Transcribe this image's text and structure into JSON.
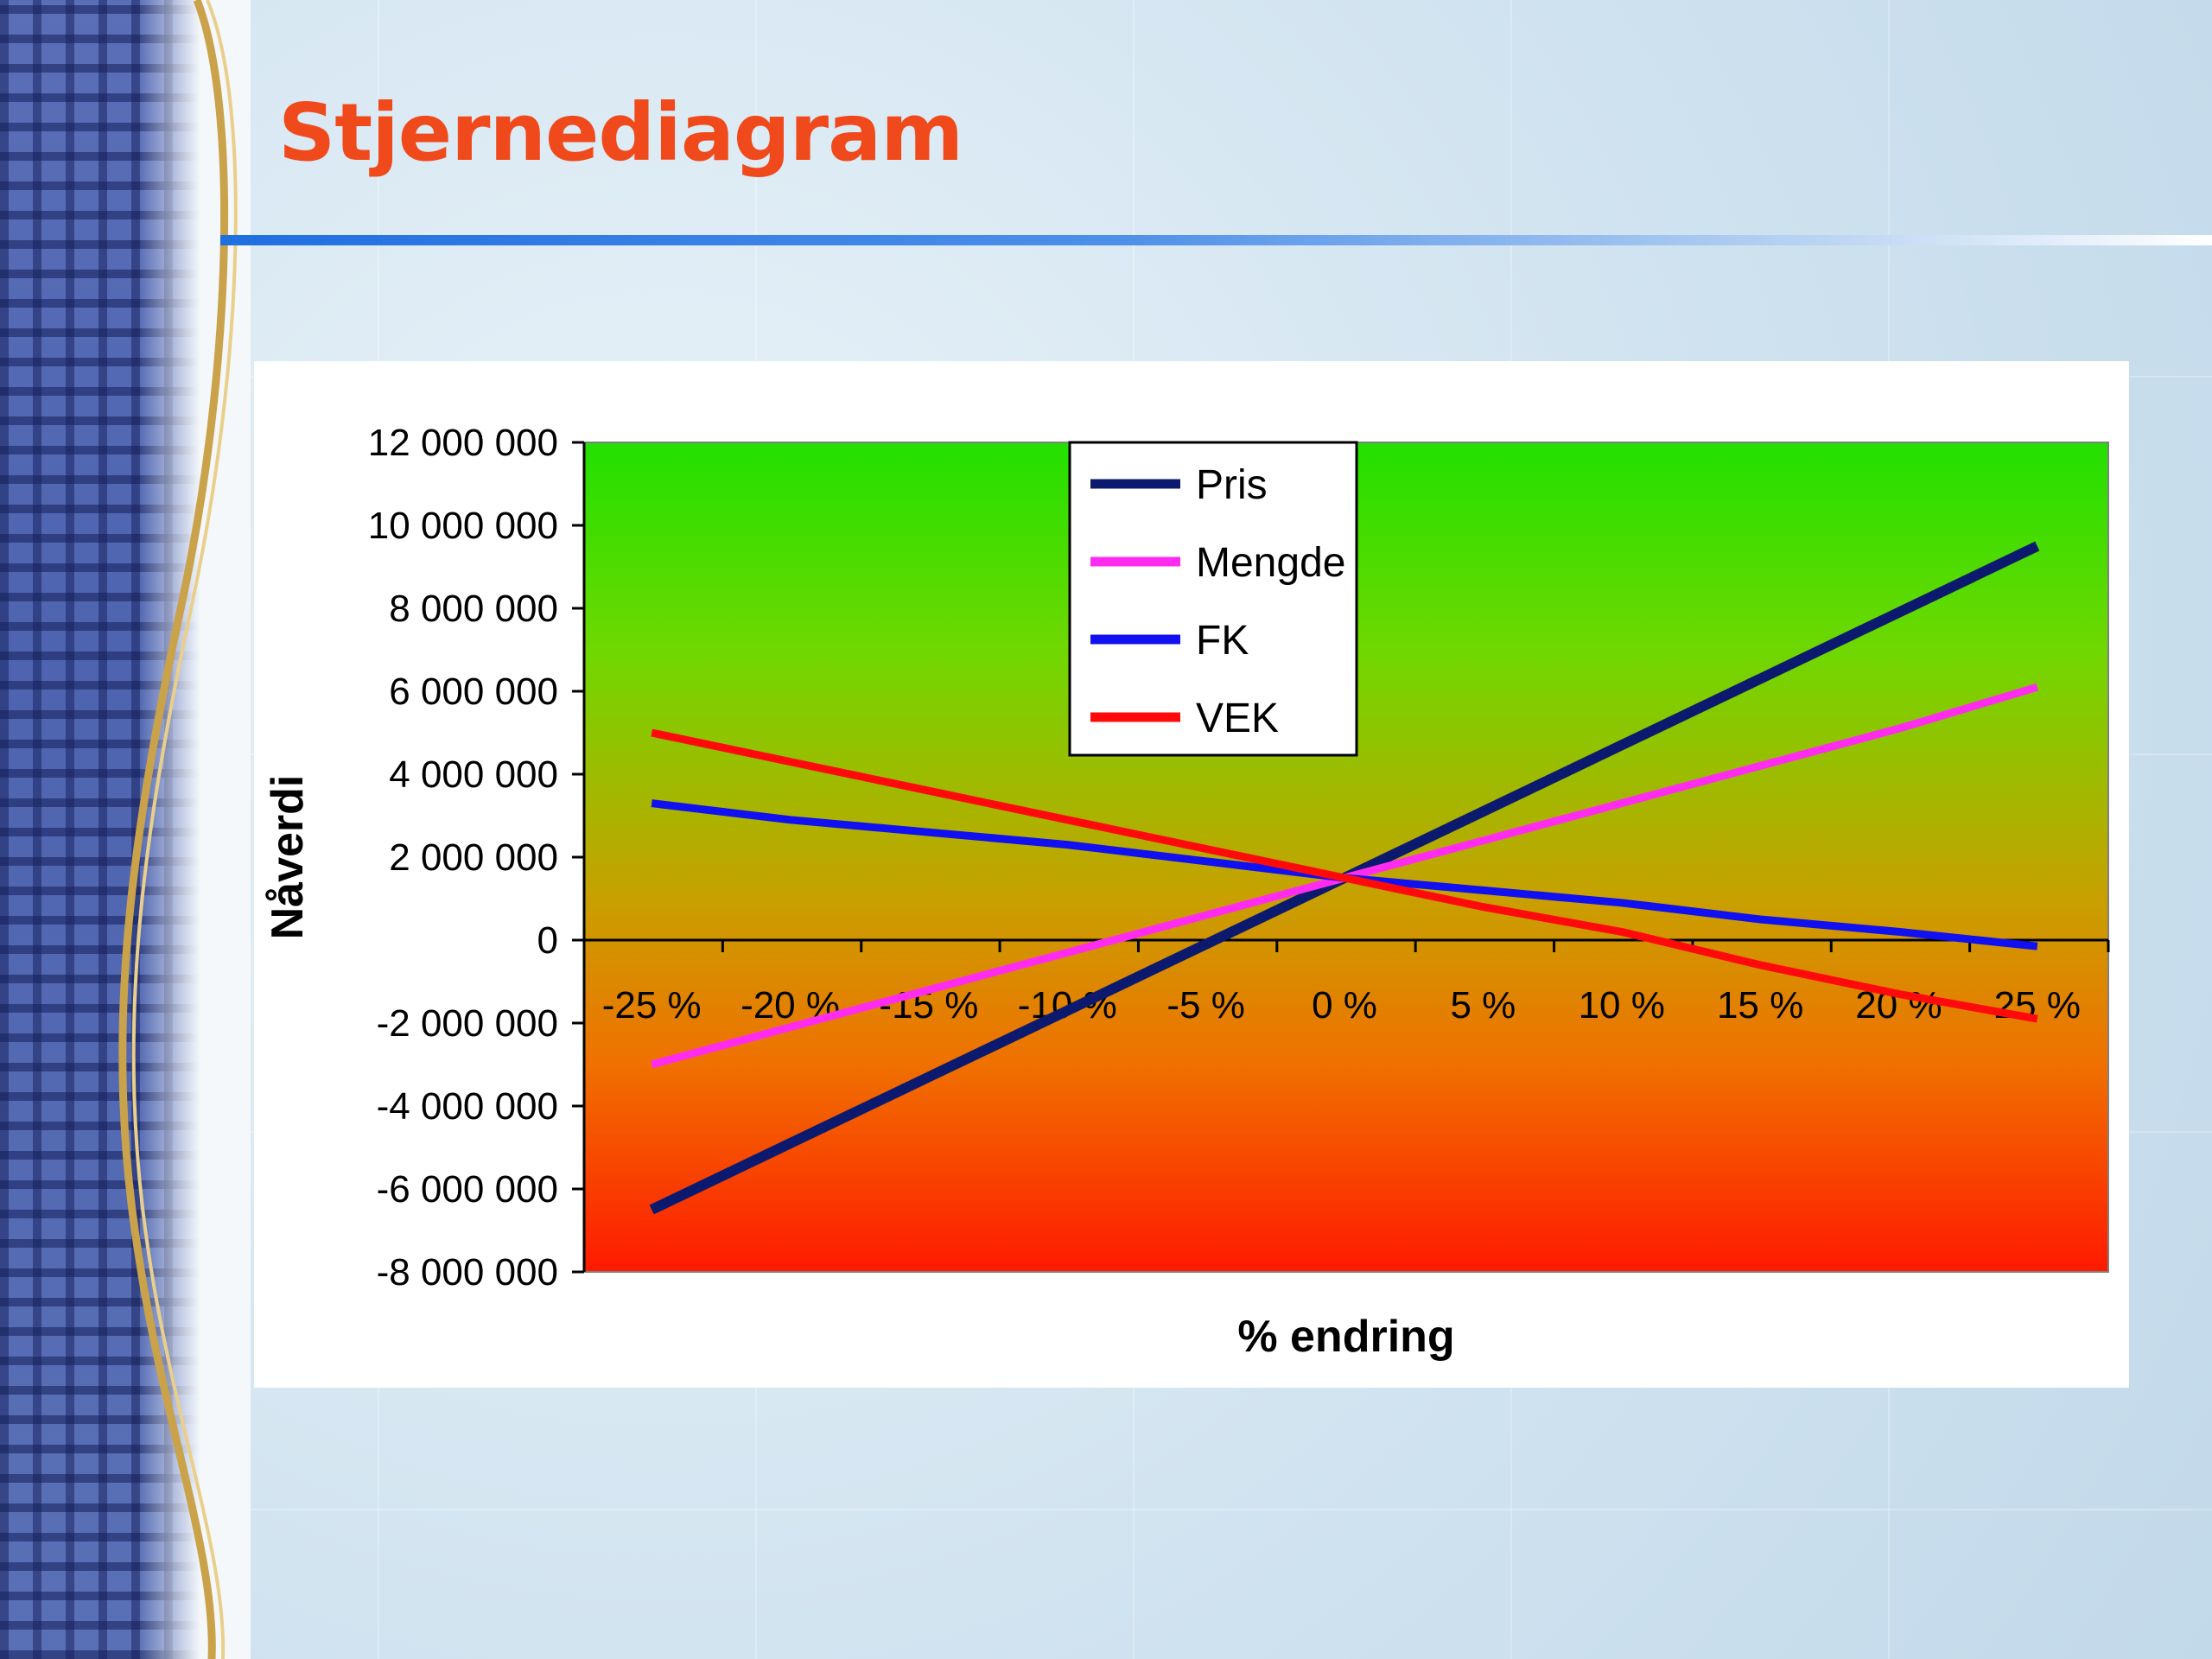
{
  "slide": {
    "title": "Stjernediagram"
  },
  "colors": {
    "title": "#f04a1c",
    "rule": "#1f6fe0",
    "plot_top": "#22e000",
    "plot_mid": "#c8a000",
    "plot_bottom": "#ff1a00"
  },
  "chart_data": {
    "type": "line",
    "title": "",
    "xlabel": "% endring",
    "ylabel": "Nåverdi",
    "categories": [
      "-25 %",
      "-20 %",
      "-15 %",
      "-10 %",
      "-5 %",
      "0 %",
      "5 %",
      "10 %",
      "15 %",
      "20 %",
      "25 %"
    ],
    "ylim": [
      -8000000,
      12000000
    ],
    "yticks": [
      12000000,
      10000000,
      8000000,
      6000000,
      4000000,
      2000000,
      0,
      -2000000,
      -4000000,
      -6000000,
      -8000000
    ],
    "ytick_labels": [
      "12 000 000",
      "10 000 000",
      "8 000 000",
      "6 000 000",
      "4 000 000",
      "2 000 000",
      "0",
      "-2 000 000",
      "-4 000 000",
      "-6 000 000",
      "-8 000 000"
    ],
    "legend_position": "top-center",
    "grid": false,
    "series": [
      {
        "name": "Pris",
        "color": "#0b1a6e",
        "values": [
          -6500000,
          -4900000,
          -3300000,
          -1700000,
          -100000,
          1500000,
          3100000,
          4700000,
          6300000,
          7900000,
          9500000
        ]
      },
      {
        "name": "Mengde",
        "color": "#ff2cf0",
        "values": [
          -3000000,
          -2100000,
          -1200000,
          -300000,
          600000,
          1500000,
          2400000,
          3300000,
          4200000,
          5100000,
          6100000
        ]
      },
      {
        "name": "FK",
        "color": "#1010f0",
        "values": [
          3300000,
          2900000,
          2600000,
          2300000,
          1900000,
          1500000,
          1200000,
          900000,
          500000,
          200000,
          -150000
        ]
      },
      {
        "name": "VEK",
        "color": "#ff0a0a",
        "values": [
          5000000,
          4300000,
          3600000,
          2900000,
          2200000,
          1500000,
          800000,
          200000,
          -600000,
          -1300000,
          -1900000
        ]
      }
    ]
  }
}
